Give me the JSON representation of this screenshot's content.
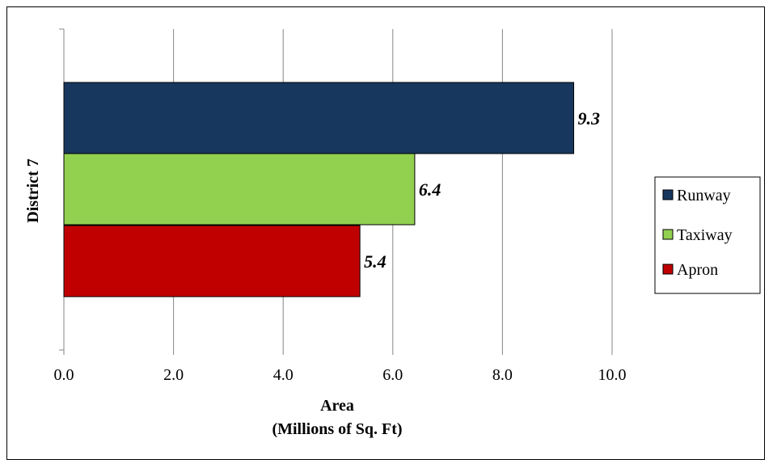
{
  "chart_data": {
    "type": "bar",
    "orientation": "horizontal",
    "categories": [
      "District 7"
    ],
    "series": [
      {
        "name": "Runway",
        "values": [
          9.3
        ],
        "color": "#17375e"
      },
      {
        "name": "Taxiway",
        "values": [
          6.4
        ],
        "color": "#92d050"
      },
      {
        "name": "Apron",
        "values": [
          5.4
        ],
        "color": "#c00000"
      }
    ],
    "data_labels": [
      "9.3",
      "6.4",
      "5.4"
    ],
    "xlabel_line1": "Area",
    "xlabel_line2": "(Millions of Sq. Ft)",
    "ylabel": "District 7",
    "xlim": [
      0,
      10
    ],
    "xticks": [
      "0.0",
      "2.0",
      "4.0",
      "6.0",
      "8.0",
      "10.0"
    ],
    "grid": "vertical",
    "legend": "right"
  }
}
